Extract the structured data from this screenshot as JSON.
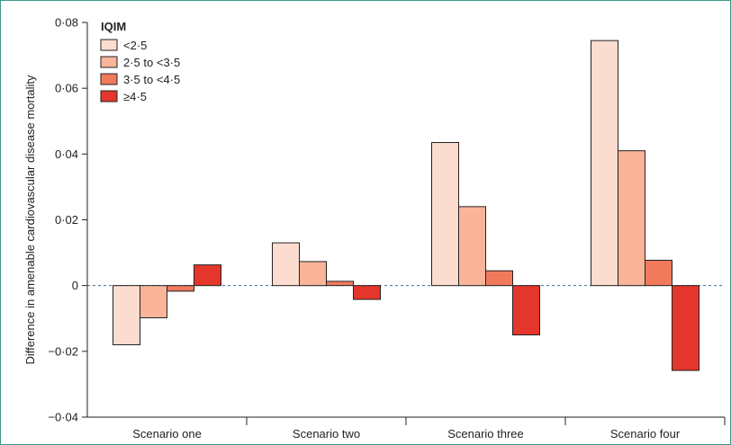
{
  "chart_data": {
    "type": "bar",
    "title": "",
    "xlabel": "",
    "ylabel": "Difference in amenable cardiovascular disease mortality",
    "ylim": [
      -0.04,
      0.08
    ],
    "yticks": [
      -0.04,
      -0.02,
      0,
      0.02,
      0.04,
      0.06,
      0.08
    ],
    "ytick_labels": [
      "−0·04",
      "−0·02",
      "0",
      "0·02",
      "0·04",
      "0·06",
      "0·08"
    ],
    "categories": [
      "Scenario one",
      "Scenario two",
      "Scenario three",
      "Scenario four"
    ],
    "legend": {
      "title": "IQIM",
      "position": "top-left"
    },
    "series": [
      {
        "name": "<2·5",
        "color": "#fddcd0",
        "values": [
          -0.018,
          0.013,
          0.0435,
          0.0745
        ]
      },
      {
        "name": "2·5 to <3·5",
        "color": "#f9b49a",
        "values": [
          -0.0098,
          0.0073,
          0.024,
          0.041
        ]
      },
      {
        "name": "3·5 to <4·5",
        "color": "#f17a5c",
        "values": [
          -0.0017,
          0.0013,
          0.0045,
          0.0077
        ]
      },
      {
        "name": "≥4·5",
        "color": "#e4362b",
        "values": [
          0.0063,
          -0.0042,
          -0.015,
          -0.0258
        ]
      }
    ],
    "zero_line": "dotted",
    "grid": false
  }
}
